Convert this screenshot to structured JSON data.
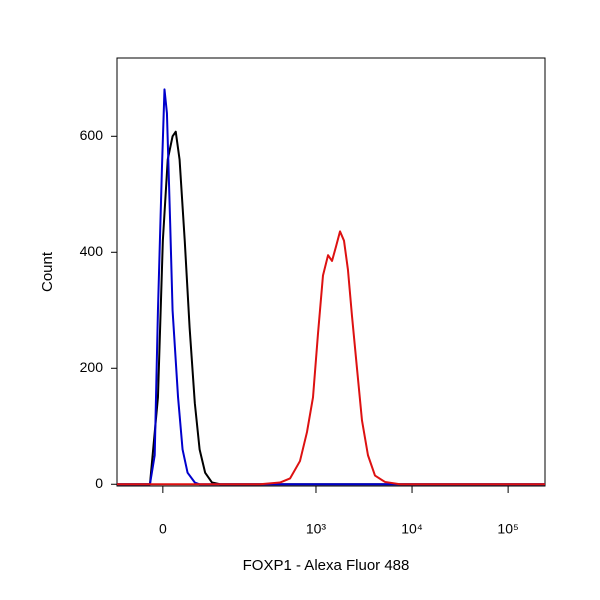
{
  "chart_data": {
    "type": "line",
    "x_label": "FOXP1 - Alexa Fluor 488",
    "y_label": "Count",
    "xscale": "biexponential",
    "xlim": [
      -68,
      242000
    ],
    "ylim": [
      -3,
      735
    ],
    "xticks": [
      0,
      {
        "value": 1000,
        "label": "10³"
      },
      {
        "value": 10000,
        "label": "10⁴"
      },
      {
        "value": 100000,
        "label": "10⁵"
      }
    ],
    "yticks": [
      0,
      200,
      400,
      600
    ],
    "series": [
      {
        "color": "#000000",
        "x": [
          -68,
          -16,
          -6,
          0,
          6,
          12,
          16,
          21,
          28,
          35,
          43,
          51,
          61,
          75,
          94,
          242000
        ],
        "values": [
          0,
          0,
          150,
          420,
          560,
          600,
          608,
          560,
          420,
          270,
          140,
          60,
          20,
          3,
          0,
          0
        ]
      },
      {
        "color": "#0000cc",
        "x": [
          -68,
          -16,
          -10,
          -6,
          -1,
          2,
          5,
          9,
          12,
          19,
          25,
          32,
          43,
          51,
          242000
        ],
        "values": [
          0,
          0,
          50,
          300,
          550,
          681,
          640,
          450,
          300,
          150,
          60,
          20,
          3,
          0,
          0
        ]
      },
      {
        "color": "#dd1111",
        "x": [
          -68,
          259,
          421,
          536,
          681,
          806,
          931,
          1050,
          1183,
          1336,
          1469,
          1617,
          1780,
          1958,
          2152,
          2372,
          2672,
          3014,
          3478,
          4116,
          5233,
          7487,
          242000
        ],
        "values": [
          0,
          0,
          3,
          10,
          40,
          90,
          150,
          260,
          360,
          395,
          385,
          410,
          436,
          420,
          370,
          290,
          200,
          110,
          50,
          15,
          4,
          0,
          0
        ]
      }
    ]
  }
}
